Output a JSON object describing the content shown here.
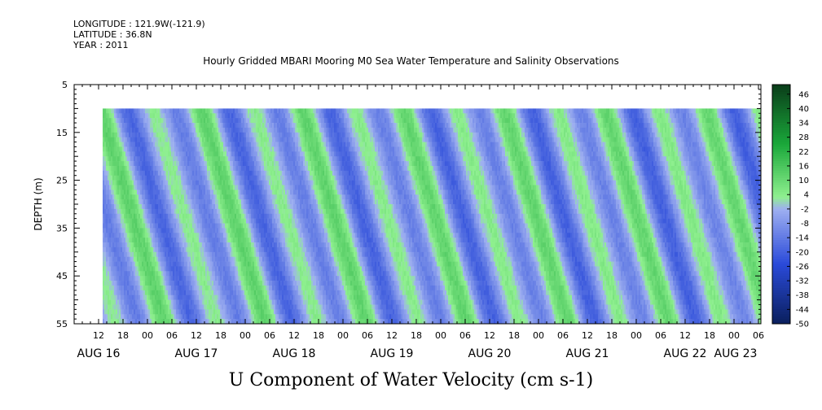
{
  "header": {
    "longitude": "LONGITUDE : 121.9W(-121.9)",
    "latitude": "LATITUDE : 36.8N",
    "year": "YEAR : 2011"
  },
  "chart_data": {
    "type": "heatmap",
    "title": "Hourly Gridded MBARI Mooring M0 Sea Water Temperature and Salinity Observations",
    "bottom_title": "U Component of Water Velocity (cm s-1)",
    "ylabel": "DEPTH (m)",
    "xlabel": "",
    "y_range": [
      5,
      55
    ],
    "y_ticks": [
      "5",
      "15",
      "25",
      "35",
      "45",
      "55"
    ],
    "data_depth_range": [
      10,
      55
    ],
    "x_range_hours": [
      "AUG 16 06:00",
      "AUG 23 12:00"
    ],
    "data_start": "AUG 16 13:00",
    "hour_ticks": [
      "12",
      "18",
      "00",
      "06",
      "12",
      "18",
      "00",
      "06",
      "12",
      "18",
      "00",
      "06",
      "12",
      "18",
      "00",
      "06",
      "12",
      "18",
      "00",
      "06",
      "12",
      "18",
      "00",
      "06",
      "12",
      "18",
      "00",
      "06"
    ],
    "day_labels": [
      "AUG 16",
      "AUG 17",
      "AUG 18",
      "AUG 19",
      "AUG 20",
      "AUG 21",
      "AUG 22",
      "AUG 23"
    ],
    "colorbar": {
      "min": -50,
      "max": 50,
      "labels": [
        "46",
        "40",
        "34",
        "28",
        "22",
        "16",
        "10",
        "4",
        "-2",
        "-8",
        "-14",
        "-20",
        "-26",
        "-32",
        "-38",
        "-44",
        "-50"
      ],
      "colors": [
        "#0a1f5c",
        "#2a4ad9",
        "#9fb0f0",
        "#8ff08f",
        "#1aa83a",
        "#0a3d1a"
      ]
    },
    "grid": false,
    "legend": "right"
  }
}
